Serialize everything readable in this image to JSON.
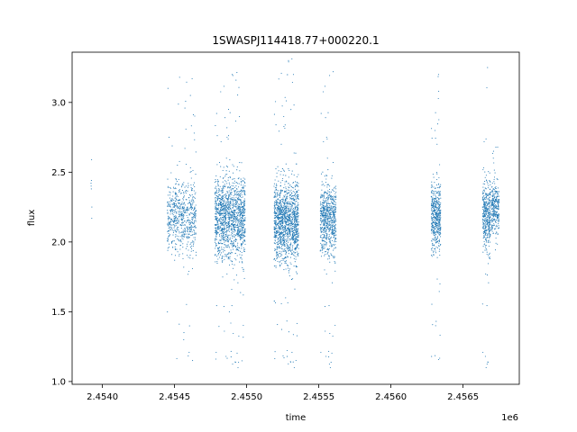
{
  "chart_data": {
    "type": "scatter",
    "title": "1SWASPJ114418.77+000220.1",
    "xlabel": "time",
    "ylabel": "flux",
    "x_offset_label": "1e6",
    "xlim": [
      2453790,
      2456890
    ],
    "ylim": [
      0.98,
      3.36
    ],
    "x_ticks": [
      2454000,
      2454500,
      2455000,
      2455500,
      2456000,
      2456500
    ],
    "x_tick_labels": [
      "2.4540",
      "2.4545",
      "2.4550",
      "2.4555",
      "2.4560",
      "2.4565"
    ],
    "y_ticks": [
      1.0,
      1.5,
      2.0,
      2.5,
      3.0
    ],
    "y_tick_labels": [
      "1.0",
      "1.5",
      "2.0",
      "2.5",
      "3.0"
    ],
    "marker_color": "#1f77b4",
    "grid": false,
    "series": [
      {
        "points": [
          [
            2453921,
            2.42
          ],
          [
            2453922,
            2.4
          ],
          [
            2453923,
            2.38
          ],
          [
            2453924,
            2.44
          ],
          [
            2453925,
            2.59
          ],
          [
            2453926,
            2.17
          ],
          [
            2453927,
            2.25
          ],
          [
            2454460,
            2.1
          ],
          [
            2454475,
            2.3
          ],
          [
            2454490,
            2.05
          ],
          [
            2454505,
            1.95
          ],
          [
            2454520,
            2.55
          ],
          [
            2454535,
            3.18
          ],
          [
            2454550,
            2.2
          ],
          [
            2454565,
            1.35
          ],
          [
            2454580,
            2.4
          ],
          [
            2454595,
            2.0
          ],
          [
            2454610,
            3.05
          ],
          [
            2454625,
            1.15
          ],
          [
            2454640,
            2.25
          ],
          [
            2454800,
            2.15
          ],
          [
            2454830,
            1.9
          ],
          [
            2454860,
            2.6
          ],
          [
            2454880,
            1.5
          ],
          [
            2454900,
            3.2
          ],
          [
            2454920,
            2.3
          ],
          [
            2454940,
            1.1
          ],
          [
            2454960,
            2.45
          ],
          [
            2454980,
            2.05
          ],
          [
            2455210,
            2.2
          ],
          [
            2455240,
            2.7
          ],
          [
            2455270,
            1.6
          ],
          [
            2455290,
            3.3
          ],
          [
            2455310,
            2.1
          ],
          [
            2455330,
            1.1
          ],
          [
            2455350,
            2.4
          ],
          [
            2455520,
            2.25
          ],
          [
            2455540,
            1.8
          ],
          [
            2455560,
            2.6
          ],
          [
            2455580,
            1.1
          ],
          [
            2455600,
            3.22
          ],
          [
            2455620,
            2.05
          ],
          [
            2456290,
            2.2
          ],
          [
            2456310,
            1.4
          ],
          [
            2456320,
            2.7
          ],
          [
            2456330,
            3.2
          ],
          [
            2456340,
            1.7
          ],
          [
            2456640,
            2.3
          ],
          [
            2456660,
            1.1
          ],
          [
            2456670,
            3.25
          ],
          [
            2456690,
            2.05
          ],
          [
            2456710,
            2.6
          ],
          [
            2456730,
            2.25
          ],
          [
            2456740,
            2.68
          ]
        ]
      }
    ],
    "dense_clusters": [
      {
        "x_range": [
          2454450,
          2454650
        ],
        "y_center": 2.18,
        "spread": 0.18,
        "outlier_range": [
          1.13,
          3.2
        ],
        "weight": 650
      },
      {
        "x_range": [
          2454780,
          2454990
        ],
        "y_center": 2.18,
        "spread": 0.2,
        "outlier_range": [
          1.1,
          3.25
        ],
        "weight": 1400
      },
      {
        "x_range": [
          2455190,
          2455360
        ],
        "y_center": 2.15,
        "spread": 0.2,
        "outlier_range": [
          1.1,
          3.35
        ],
        "weight": 1500
      },
      {
        "x_range": [
          2455510,
          2455620
        ],
        "y_center": 2.17,
        "spread": 0.17,
        "outlier_range": [
          1.1,
          3.25
        ],
        "weight": 700
      },
      {
        "x_range": [
          2456280,
          2456345
        ],
        "y_center": 2.18,
        "spread": 0.17,
        "outlier_range": [
          1.12,
          3.22
        ],
        "weight": 500
      },
      {
        "x_range": [
          2456635,
          2456690
        ],
        "y_center": 2.2,
        "spread": 0.17,
        "outlier_range": [
          1.1,
          3.25
        ],
        "weight": 400
      },
      {
        "x_range": [
          2456695,
          2456750
        ],
        "y_center": 2.25,
        "spread": 0.12,
        "outlier_range": [
          1.9,
          2.7
        ],
        "weight": 300
      }
    ]
  }
}
